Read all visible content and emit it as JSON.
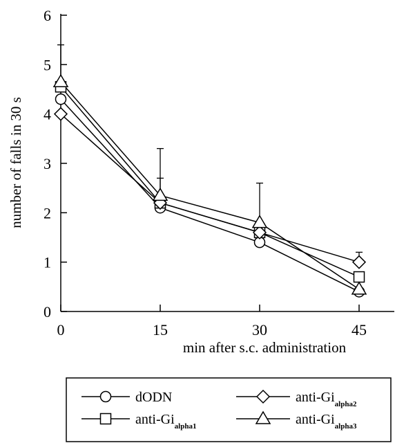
{
  "chart_data": {
    "type": "line",
    "title": "",
    "xlabel": "min after s.c. administration",
    "ylabel": "number of falls in 30 s",
    "x": [
      0,
      15,
      30,
      45
    ],
    "x_ticks": [
      "0",
      "15",
      "30",
      "45"
    ],
    "y_ticks": [
      "0",
      "1",
      "2",
      "3",
      "4",
      "5",
      "6"
    ],
    "xlim": [
      0,
      45
    ],
    "ylim": [
      0,
      6
    ],
    "grid": false,
    "legend_position": "bottom (boxed, two columns)",
    "series": [
      {
        "name": "dODN",
        "legend_main": "dODN",
        "legend_sub": "",
        "marker": "circle",
        "values": [
          4.3,
          2.1,
          1.4,
          0.4
        ],
        "error_upper": [
          null,
          null,
          null,
          null
        ]
      },
      {
        "name": "anti-Gialpha1",
        "legend_main": "anti-Gi",
        "legend_sub": "alpha1",
        "marker": "square",
        "values": [
          4.55,
          2.2,
          1.6,
          0.7
        ],
        "error_upper": [
          null,
          2.7,
          null,
          null
        ]
      },
      {
        "name": "anti-Gialpha2",
        "legend_main": "anti-Gi",
        "legend_sub": "alpha2",
        "marker": "diamond",
        "values": [
          4.0,
          2.2,
          1.6,
          1.0
        ],
        "error_upper": [
          null,
          null,
          null,
          1.2
        ]
      },
      {
        "name": "anti-Gialpha3",
        "legend_main": "anti-Gi",
        "legend_sub": "alpha3",
        "marker": "triangle",
        "values": [
          4.65,
          2.35,
          1.8,
          0.45
        ],
        "error_upper": [
          5.4,
          3.3,
          2.6,
          null
        ]
      }
    ]
  }
}
